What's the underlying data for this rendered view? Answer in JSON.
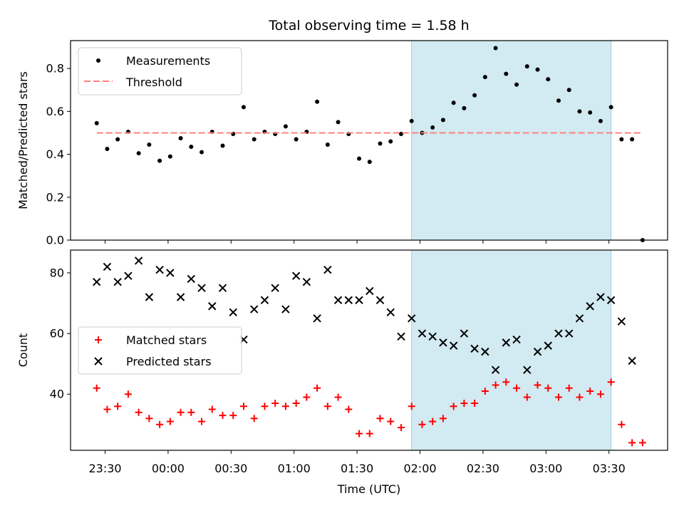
{
  "title": "Total observing time = 1.58 h",
  "xlabel": "Time (UTC)",
  "x_ticks": [
    "23:30",
    "00:00",
    "00:30",
    "01:00",
    "01:30",
    "02:00",
    "02:30",
    "03:00",
    "03:30"
  ],
  "chart_data": [
    {
      "type": "scatter",
      "ylabel": "Matched/Predicted stars",
      "ylim": [
        0,
        0.93
      ],
      "y_ticks": [
        "0.0",
        "0.2",
        "0.4",
        "0.6",
        "0.8"
      ],
      "legend_placement": "top-left",
      "shaded_region": {
        "start": "01:56",
        "end": "03:31",
        "color": "#add8e6"
      },
      "series": [
        {
          "name": "Measurements",
          "marker": "dot",
          "color": "#000000",
          "x": [
            "23:26",
            "23:31",
            "23:36",
            "23:41",
            "23:46",
            "23:51",
            "23:56",
            "00:01",
            "00:06",
            "00:11",
            "00:16",
            "00:21",
            "00:26",
            "00:31",
            "00:36",
            "00:41",
            "00:46",
            "00:51",
            "00:56",
            "01:01",
            "01:06",
            "01:11",
            "01:16",
            "01:21",
            "01:26",
            "01:31",
            "01:36",
            "01:41",
            "01:46",
            "01:51",
            "01:56",
            "02:01",
            "02:06",
            "02:11",
            "02:16",
            "02:21",
            "02:26",
            "02:31",
            "02:36",
            "02:41",
            "02:46",
            "02:51",
            "02:56",
            "03:01",
            "03:06",
            "03:11",
            "03:16",
            "03:21",
            "03:26",
            "03:31",
            "03:36",
            "03:41",
            "03:46"
          ],
          "y": [
            0.545,
            0.425,
            0.47,
            0.505,
            0.405,
            0.445,
            0.37,
            0.39,
            0.475,
            0.435,
            0.41,
            0.505,
            0.44,
            0.495,
            0.62,
            0.47,
            0.505,
            0.495,
            0.53,
            0.47,
            0.505,
            0.645,
            0.445,
            0.55,
            0.495,
            0.38,
            0.365,
            0.45,
            0.46,
            0.495,
            0.555,
            0.5,
            0.525,
            0.56,
            0.64,
            0.615,
            0.675,
            0.76,
            0.895,
            0.775,
            0.725,
            0.81,
            0.795,
            0.75,
            0.65,
            0.7,
            0.6,
            0.595,
            0.555,
            0.62,
            0.47,
            0.47,
            0.0
          ]
        },
        {
          "name": "Threshold",
          "style": "dashed",
          "color": "#ff7f7f",
          "x": [
            "23:26",
            "03:46"
          ],
          "y": [
            0.5,
            0.5
          ]
        }
      ]
    },
    {
      "type": "scatter",
      "ylabel": "Count",
      "ylim": [
        21.5,
        87.5
      ],
      "y_ticks": [
        "40",
        "60",
        "80"
      ],
      "legend_placement": "center-left",
      "shaded_region": {
        "start": "01:56",
        "end": "03:31",
        "color": "#add8e6"
      },
      "series": [
        {
          "name": "Matched stars",
          "marker": "plus",
          "color": "#ff0000",
          "x": [
            "23:26",
            "23:31",
            "23:36",
            "23:41",
            "23:46",
            "23:51",
            "23:56",
            "00:01",
            "00:06",
            "00:11",
            "00:16",
            "00:21",
            "00:26",
            "00:31",
            "00:36",
            "00:41",
            "00:46",
            "00:51",
            "00:56",
            "01:01",
            "01:06",
            "01:11",
            "01:16",
            "01:21",
            "01:26",
            "01:31",
            "01:36",
            "01:41",
            "01:46",
            "01:51",
            "01:56",
            "02:01",
            "02:06",
            "02:11",
            "02:16",
            "02:21",
            "02:26",
            "02:31",
            "02:36",
            "02:41",
            "02:46",
            "02:51",
            "02:56",
            "03:01",
            "03:06",
            "03:11",
            "03:16",
            "03:21",
            "03:26",
            "03:31",
            "03:36",
            "03:41",
            "03:46"
          ],
          "y": [
            42,
            35,
            36,
            40,
            34,
            32,
            30,
            31,
            34,
            34,
            31,
            35,
            33,
            33,
            36,
            32,
            36,
            37,
            36,
            37,
            39,
            42,
            36,
            39,
            35,
            27,
            27,
            32,
            31,
            29,
            36,
            30,
            31,
            32,
            36,
            37,
            37,
            41,
            43,
            44,
            42,
            39,
            43,
            42,
            39,
            42,
            39,
            41,
            40,
            44,
            30,
            24,
            24
          ]
        },
        {
          "name": "Predicted stars",
          "marker": "x",
          "color": "#000000",
          "x": [
            "23:26",
            "23:31",
            "23:36",
            "23:41",
            "23:46",
            "23:51",
            "23:56",
            "00:01",
            "00:06",
            "00:11",
            "00:16",
            "00:21",
            "00:26",
            "00:31",
            "00:36",
            "00:41",
            "00:46",
            "00:51",
            "00:56",
            "01:01",
            "01:06",
            "01:11",
            "01:16",
            "01:21",
            "01:26",
            "01:31",
            "01:36",
            "01:41",
            "01:46",
            "01:51",
            "01:56",
            "02:01",
            "02:06",
            "02:11",
            "02:16",
            "02:21",
            "02:26",
            "02:31",
            "02:36",
            "02:41",
            "02:46",
            "02:51",
            "02:56",
            "03:01",
            "03:06",
            "03:11",
            "03:16",
            "03:21",
            "03:26",
            "03:31",
            "03:36",
            "03:41"
          ],
          "y": [
            77,
            82,
            77,
            79,
            84,
            72,
            81,
            80,
            72,
            78,
            75,
            69,
            75,
            67,
            58,
            68,
            71,
            75,
            68,
            79,
            77,
            65,
            81,
            71,
            71,
            71,
            74,
            71,
            67,
            59,
            65,
            60,
            59,
            57,
            56,
            60,
            55,
            54,
            48,
            57,
            58,
            48,
            54,
            56,
            60,
            60,
            65,
            69,
            72,
            71,
            64,
            51
          ]
        }
      ]
    }
  ]
}
